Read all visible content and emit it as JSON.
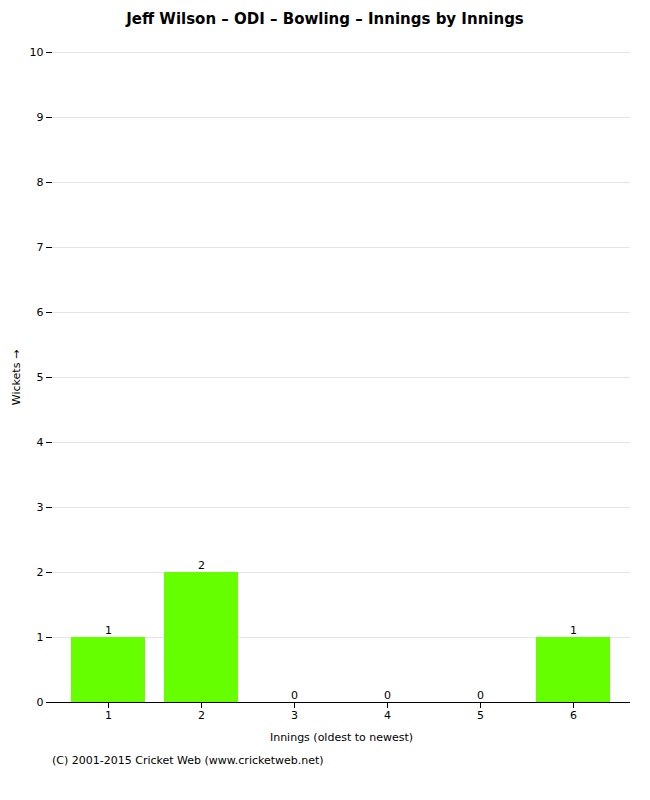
{
  "chart_data": {
    "type": "bar",
    "title": "Jeff Wilson – ODI – Bowling – Innings by Innings",
    "xlabel": "Innings (oldest to newest)",
    "ylabel": "Wickets",
    "categories": [
      "1",
      "2",
      "3",
      "4",
      "5",
      "6"
    ],
    "values": [
      1,
      2,
      0,
      0,
      0,
      1
    ],
    "color": "#66ff00",
    "ylim": [
      0,
      10
    ],
    "yticks": [
      0,
      1,
      2,
      3,
      4,
      5,
      6,
      7,
      8,
      9,
      10
    ],
    "grid": true,
    "data_labels": true,
    "footer": "(C) 2001-2015 Cricket Web (www.cricketweb.net)"
  }
}
